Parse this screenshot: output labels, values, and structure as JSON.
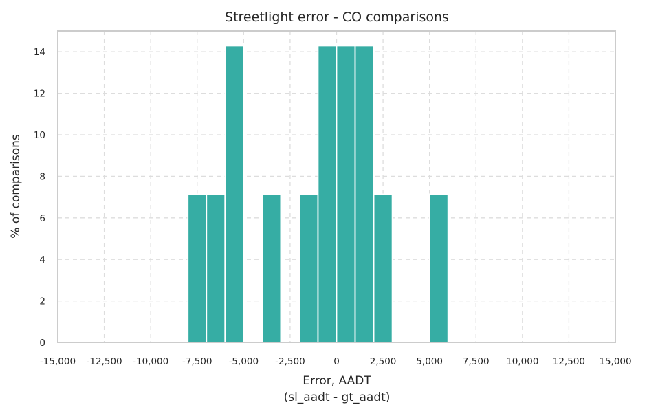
{
  "chart_data": {
    "type": "bar",
    "title": "Streetlight error - CO comparisons",
    "xlabel_line1": "Error, AADT",
    "xlabel_line2": "(sl_aadt - gt_aadt)",
    "ylabel": "% of comparisons",
    "xlim": [
      -15000,
      15000
    ],
    "ylim": [
      0,
      15
    ],
    "bar_color": "#36ada4",
    "grid": true,
    "x_ticks": [
      -15000,
      -12500,
      -10000,
      -7500,
      -5000,
      -2500,
      0,
      2500,
      5000,
      7500,
      10000,
      12500,
      15000
    ],
    "x_tick_labels": [
      "-15,000",
      "-12,500",
      "-10,000",
      "-7,500",
      "-5,000",
      "-2,500",
      "0",
      "2,500",
      "5,000",
      "7,500",
      "10,000",
      "12,500",
      "15,000"
    ],
    "y_ticks": [
      0,
      2,
      4,
      6,
      8,
      10,
      12,
      14
    ],
    "y_tick_labels": [
      "0",
      "2",
      "4",
      "6",
      "8",
      "10",
      "12",
      "14"
    ],
    "bars": [
      {
        "x0": -8000,
        "x1": -7000,
        "value": 7.14
      },
      {
        "x0": -7000,
        "x1": -6000,
        "value": 7.14
      },
      {
        "x0": -6000,
        "x1": -5000,
        "value": 14.29
      },
      {
        "x0": -4000,
        "x1": -3000,
        "value": 7.14
      },
      {
        "x0": -2000,
        "x1": -1000,
        "value": 7.14
      },
      {
        "x0": -1000,
        "x1": 0,
        "value": 14.29
      },
      {
        "x0": 0,
        "x1": 1000,
        "value": 14.29
      },
      {
        "x0": 1000,
        "x1": 2000,
        "value": 14.29
      },
      {
        "x0": 2000,
        "x1": 3000,
        "value": 7.14
      },
      {
        "x0": 5000,
        "x1": 6000,
        "value": 7.14
      }
    ]
  }
}
